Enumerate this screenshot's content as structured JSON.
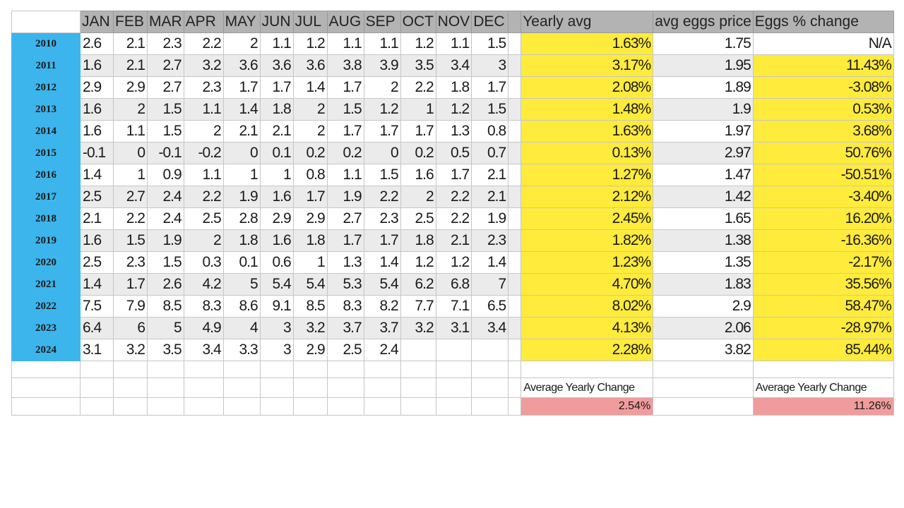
{
  "headers": {
    "months": [
      "JAN",
      "FEB",
      "MAR",
      "APR",
      "MAY",
      "JUN",
      "JUL",
      "AUG",
      "SEP",
      "OCT",
      "NOV",
      "DEC"
    ],
    "yearly_avg": "Yearly avg",
    "avg_eggs_price": "avg eggs price",
    "eggs_pct_change": "Eggs % change"
  },
  "rows": [
    {
      "year": "2010",
      "m": [
        "2.6",
        "2.1",
        "2.3",
        "2.2",
        "2",
        "1.1",
        "1.2",
        "1.1",
        "1.1",
        "1.2",
        "1.1",
        "1.5"
      ],
      "avg": "1.63%",
      "price": "1.75",
      "change": "N/A"
    },
    {
      "year": "2011",
      "m": [
        "1.6",
        "2.1",
        "2.7",
        "3.2",
        "3.6",
        "3.6",
        "3.6",
        "3.8",
        "3.9",
        "3.5",
        "3.4",
        "3"
      ],
      "avg": "3.17%",
      "price": "1.95",
      "change": "11.43%"
    },
    {
      "year": "2012",
      "m": [
        "2.9",
        "2.9",
        "2.7",
        "2.3",
        "1.7",
        "1.7",
        "1.4",
        "1.7",
        "2",
        "2.2",
        "1.8",
        "1.7"
      ],
      "avg": "2.08%",
      "price": "1.89",
      "change": "-3.08%"
    },
    {
      "year": "2013",
      "m": [
        "1.6",
        "2",
        "1.5",
        "1.1",
        "1.4",
        "1.8",
        "2",
        "1.5",
        "1.2",
        "1",
        "1.2",
        "1.5"
      ],
      "avg": "1.48%",
      "price": "1.9",
      "change": "0.53%"
    },
    {
      "year": "2014",
      "m": [
        "1.6",
        "1.1",
        "1.5",
        "2",
        "2.1",
        "2.1",
        "2",
        "1.7",
        "1.7",
        "1.7",
        "1.3",
        "0.8"
      ],
      "avg": "1.63%",
      "price": "1.97",
      "change": "3.68%"
    },
    {
      "year": "2015",
      "m": [
        "-0.1",
        "0",
        "-0.1",
        "-0.2",
        "0",
        "0.1",
        "0.2",
        "0.2",
        "0",
        "0.2",
        "0.5",
        "0.7"
      ],
      "avg": "0.13%",
      "price": "2.97",
      "change": "50.76%"
    },
    {
      "year": "2016",
      "m": [
        "1.4",
        "1",
        "0.9",
        "1.1",
        "1",
        "1",
        "0.8",
        "1.1",
        "1.5",
        "1.6",
        "1.7",
        "2.1"
      ],
      "avg": "1.27%",
      "price": "1.47",
      "change": "-50.51%"
    },
    {
      "year": "2017",
      "m": [
        "2.5",
        "2.7",
        "2.4",
        "2.2",
        "1.9",
        "1.6",
        "1.7",
        "1.9",
        "2.2",
        "2",
        "2.2",
        "2.1"
      ],
      "avg": "2.12%",
      "price": "1.42",
      "change": "-3.40%"
    },
    {
      "year": "2018",
      "m": [
        "2.1",
        "2.2",
        "2.4",
        "2.5",
        "2.8",
        "2.9",
        "2.9",
        "2.7",
        "2.3",
        "2.5",
        "2.2",
        "1.9"
      ],
      "avg": "2.45%",
      "price": "1.65",
      "change": "16.20%"
    },
    {
      "year": "2019",
      "m": [
        "1.6",
        "1.5",
        "1.9",
        "2",
        "1.8",
        "1.6",
        "1.8",
        "1.7",
        "1.7",
        "1.8",
        "2.1",
        "2.3"
      ],
      "avg": "1.82%",
      "price": "1.38",
      "change": "-16.36%"
    },
    {
      "year": "2020",
      "m": [
        "2.5",
        "2.3",
        "1.5",
        "0.3",
        "0.1",
        "0.6",
        "1",
        "1.3",
        "1.4",
        "1.2",
        "1.2",
        "1.4"
      ],
      "avg": "1.23%",
      "price": "1.35",
      "change": "-2.17%"
    },
    {
      "year": "2021",
      "m": [
        "1.4",
        "1.7",
        "2.6",
        "4.2",
        "5",
        "5.4",
        "5.4",
        "5.3",
        "5.4",
        "6.2",
        "6.8",
        "7"
      ],
      "avg": "4.70%",
      "price": "1.83",
      "change": "35.56%"
    },
    {
      "year": "2022",
      "m": [
        "7.5",
        "7.9",
        "8.5",
        "8.3",
        "8.6",
        "9.1",
        "8.5",
        "8.3",
        "8.2",
        "7.7",
        "7.1",
        "6.5"
      ],
      "avg": "8.02%",
      "price": "2.9",
      "change": "58.47%"
    },
    {
      "year": "2023",
      "m": [
        "6.4",
        "6",
        "5",
        "4.9",
        "4",
        "3",
        "3.2",
        "3.7",
        "3.7",
        "3.2",
        "3.1",
        "3.4"
      ],
      "avg": "4.13%",
      "price": "2.06",
      "change": "-28.97%"
    },
    {
      "year": "2024",
      "m": [
        "3.1",
        "3.2",
        "3.5",
        "3.4",
        "3.3",
        "3",
        "2.9",
        "2.5",
        "2.4",
        "",
        "",
        ""
      ],
      "avg": "2.28%",
      "price": "3.82",
      "change": "85.44%"
    }
  ],
  "summary": {
    "yearly_avg_label": "Average Yearly Change",
    "yearly_avg_value": "2.54%",
    "eggs_label": "Average Yearly Change",
    "eggs_value": "11.26%"
  },
  "colors": {
    "year_header": "#3cb5ec",
    "highlight_yellow": "#ffeb3b",
    "summary_pink": "#f09c9c",
    "header_gray": "#b3b3b3"
  }
}
